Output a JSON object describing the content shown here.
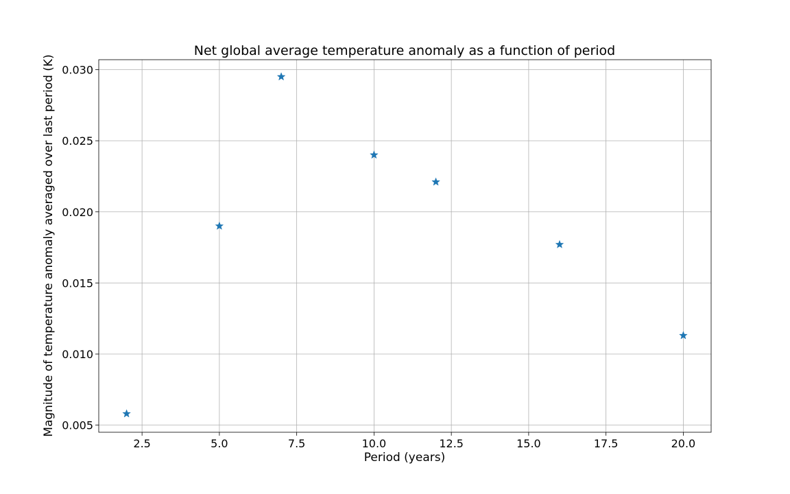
{
  "chart_data": {
    "type": "scatter",
    "title": "Net global average temperature anomaly as a function of period",
    "xlabel": "Period (years)",
    "ylabel": "Magnitude of temperature anomaly averaged over last period (K)",
    "xlim": [
      1.1,
      20.9
    ],
    "ylim": [
      0.0045,
      0.0307
    ],
    "xticks": [
      2.5,
      5.0,
      7.5,
      10.0,
      12.5,
      15.0,
      17.5,
      20.0
    ],
    "xtick_labels": [
      "2.5",
      "5.0",
      "7.5",
      "10.0",
      "12.5",
      "15.0",
      "17.5",
      "20.0"
    ],
    "yticks": [
      0.005,
      0.01,
      0.015,
      0.02,
      0.025,
      0.03
    ],
    "ytick_labels": [
      "0.005",
      "0.010",
      "0.015",
      "0.020",
      "0.025",
      "0.030"
    ],
    "grid": true,
    "marker": "star",
    "marker_color": "#1f77b4",
    "series": [
      {
        "x": [
          2,
          5,
          7,
          10,
          12,
          16,
          20
        ],
        "y": [
          0.0058,
          0.019,
          0.0295,
          0.024,
          0.0221,
          0.0177,
          0.0113
        ]
      }
    ]
  }
}
